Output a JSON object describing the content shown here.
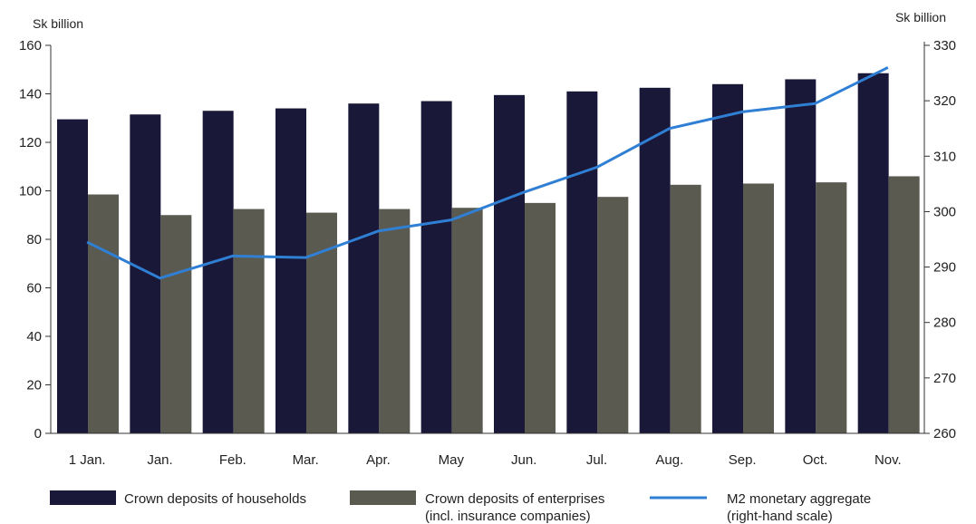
{
  "chart_data": {
    "type": "bar",
    "left_unit": "Sk billion",
    "right_unit": "Sk billion",
    "categories": [
      "1 Jan.",
      "Jan.",
      "Feb.",
      "Mar.",
      "Apr.",
      "May",
      "Jun.",
      "Jul.",
      "Aug.",
      "Sep.",
      "Oct.",
      "Nov."
    ],
    "y_left": {
      "lim": [
        0,
        160
      ],
      "ticks": [
        "0",
        "20",
        "40",
        "60",
        "80",
        "100",
        "120",
        "140",
        "160"
      ]
    },
    "y_right": {
      "lim": [
        260,
        330
      ],
      "ticks": [
        "260",
        "270",
        "280",
        "290",
        "300",
        "310",
        "320",
        "330"
      ]
    },
    "series": [
      {
        "name": "Crown deposits of households",
        "kind": "bar",
        "axis": "left",
        "color": "#1a1838",
        "values": [
          129.5,
          131.5,
          133,
          134,
          136,
          137,
          139.5,
          141,
          142.5,
          144,
          146,
          148.5
        ]
      },
      {
        "name": "Crown deposits of enterprises",
        "name_line2": "(incl. insurance companies)",
        "kind": "bar",
        "axis": "left",
        "color": "#5a5a50",
        "values": [
          98.5,
          90,
          92.5,
          91,
          92.5,
          93,
          95,
          97.5,
          102.5,
          103,
          103.5,
          106
        ]
      },
      {
        "name": "M2 monetary aggregate",
        "name_line2": "(right-hand scale)",
        "kind": "line",
        "axis": "right",
        "color": "#2f7fd4",
        "values": [
          294.5,
          288,
          292,
          291.7,
          296.5,
          298.5,
          303.5,
          308,
          315,
          318,
          319.5,
          326
        ]
      }
    ]
  }
}
